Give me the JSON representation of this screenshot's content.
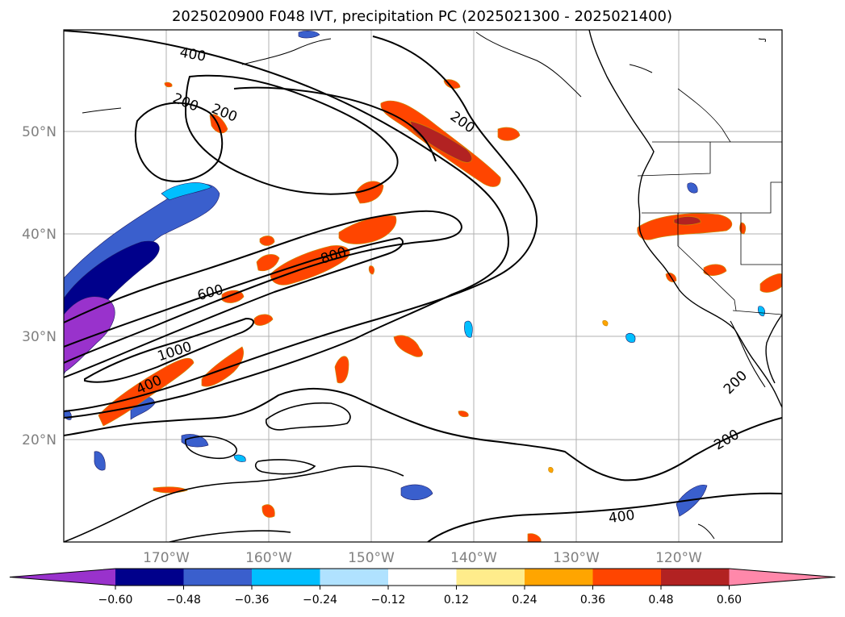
{
  "title": "2025020900 F048 IVT, precipitation PC (2025021300 - 2025021400)",
  "latitude_labels": [
    "50°N",
    "40°N",
    "30°N",
    "20°N"
  ],
  "longitude_labels": [
    "170°W",
    "160°W",
    "150°W",
    "140°W",
    "130°W",
    "120°W"
  ],
  "colorbar": {
    "colors": [
      "#9932cc",
      "#00008b",
      "#3a5fcd",
      "#00bfff",
      "#b0e2ff",
      "#ffffff",
      "#ffec8b",
      "#ffa500",
      "#ff4500",
      "#b22222",
      "#ff88aa"
    ],
    "tick_labels": [
      "−0.60",
      "−0.48",
      "−0.36",
      "−0.24",
      "−0.12",
      "0.12",
      "0.24",
      "0.36",
      "0.48",
      "0.60"
    ]
  },
  "contour_labels": [
    "400",
    "200",
    "200",
    "200",
    "800",
    "600",
    "1000",
    "400",
    "200",
    "200",
    "400"
  ],
  "colors": {
    "contour": "#000000",
    "coastline": "#000000",
    "gridline": "#b0b0b0",
    "positive_core": "#ff4500",
    "negative_core": "#3a5fcd"
  }
}
